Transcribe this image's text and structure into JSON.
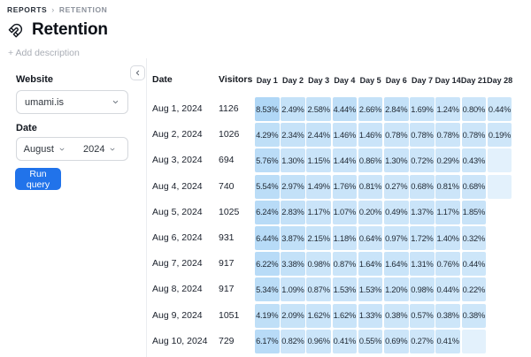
{
  "breadcrumb": {
    "section": "REPORTS",
    "separator": "›",
    "page": "RETENTION"
  },
  "header": {
    "title": "Retention",
    "add_description": "+ Add description"
  },
  "filters": {
    "website_label": "Website",
    "website_value": "umami.is",
    "date_label": "Date",
    "month_value": "August",
    "year_value": "2024",
    "run_label": "Run query"
  },
  "icons": {
    "title": "magnet-icon",
    "collapse": "chevron-left-icon",
    "selects": "chevron-down-icon"
  },
  "colors": {
    "accent_blue": "#2173ea",
    "cell_base_rgb": "35,144,229",
    "empty_cell_alpha": 0.13,
    "divider": "#ebedf0"
  },
  "table": {
    "date_header": "Date",
    "visitors_header": "Visitors",
    "day_headers": [
      "Day 1",
      "Day 2",
      "Day 3",
      "Day 4",
      "Day 5",
      "Day 6",
      "Day 7",
      "Day 14",
      "Day 21",
      "Day 28"
    ],
    "rows": [
      {
        "date": "Aug 1, 2024",
        "visitors": "1126",
        "values": [
          8.53,
          2.49,
          2.58,
          4.44,
          2.66,
          2.84,
          1.69,
          1.24,
          0.8,
          0.44
        ]
      },
      {
        "date": "Aug 2, 2024",
        "visitors": "1026",
        "values": [
          4.29,
          2.34,
          2.44,
          1.46,
          1.46,
          0.78,
          0.78,
          0.78,
          0.78,
          0.19
        ]
      },
      {
        "date": "Aug 3, 2024",
        "visitors": "694",
        "values": [
          5.76,
          1.3,
          1.15,
          1.44,
          0.86,
          1.3,
          0.72,
          0.29,
          0.43,
          0
        ]
      },
      {
        "date": "Aug 4, 2024",
        "visitors": "740",
        "values": [
          5.54,
          2.97,
          1.49,
          1.76,
          0.81,
          0.27,
          0.68,
          0.81,
          0.68,
          0
        ]
      },
      {
        "date": "Aug 5, 2024",
        "visitors": "1025",
        "values": [
          6.24,
          2.83,
          1.17,
          1.07,
          0.2,
          0.49,
          1.37,
          1.17,
          1.85,
          null
        ]
      },
      {
        "date": "Aug 6, 2024",
        "visitors": "931",
        "values": [
          6.44,
          3.87,
          2.15,
          1.18,
          0.64,
          0.97,
          1.72,
          1.4,
          0.32,
          null
        ]
      },
      {
        "date": "Aug 7, 2024",
        "visitors": "917",
        "values": [
          6.22,
          3.38,
          0.98,
          0.87,
          1.64,
          1.64,
          1.31,
          0.76,
          0.44,
          null
        ]
      },
      {
        "date": "Aug 8, 2024",
        "visitors": "917",
        "values": [
          5.34,
          1.09,
          0.87,
          1.53,
          1.53,
          1.2,
          0.98,
          0.44,
          0.22,
          null
        ]
      },
      {
        "date": "Aug 9, 2024",
        "visitors": "1051",
        "values": [
          4.19,
          2.09,
          1.62,
          1.62,
          1.33,
          0.38,
          0.57,
          0.38,
          0.38,
          null
        ]
      },
      {
        "date": "Aug 10, 2024",
        "visitors": "729",
        "values": [
          6.17,
          0.82,
          0.96,
          0.41,
          0.55,
          0.69,
          0.27,
          0.41,
          0,
          null
        ]
      }
    ]
  }
}
